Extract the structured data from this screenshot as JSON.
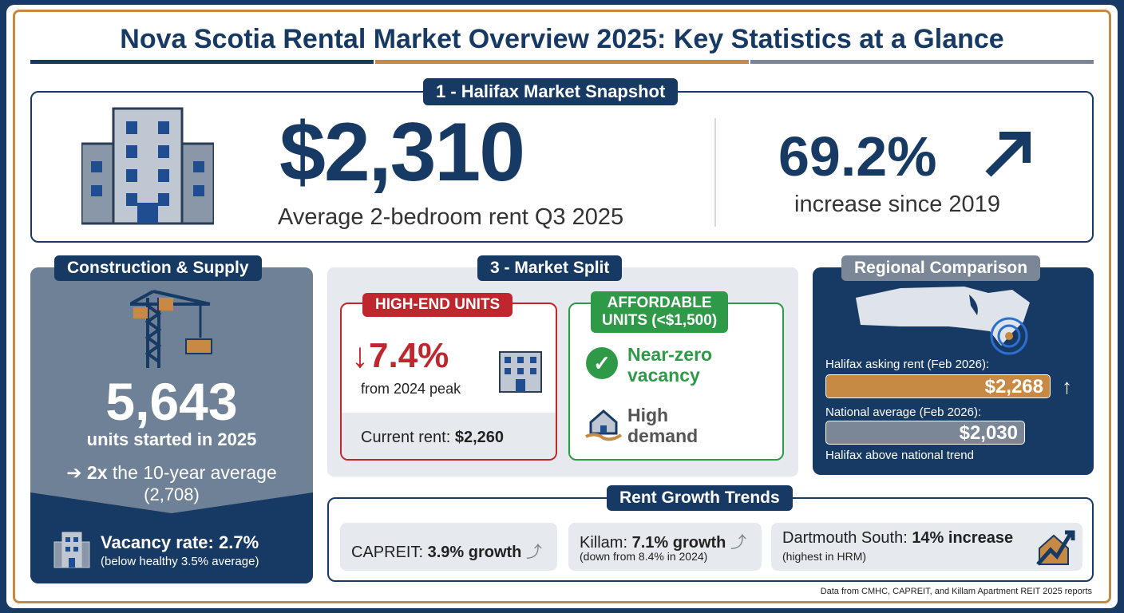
{
  "title": "Nova Scotia Rental Market Overview 2025: Key Statistics at a Glance",
  "colors": {
    "navy": "#173a64",
    "gold": "#c68a45",
    "gray": "#6f8196",
    "red": "#c0262d",
    "green": "#2e9a48"
  },
  "snapshot": {
    "label": "1 - Halifax Market Snapshot",
    "rent": "$2,310",
    "rent_caption": "Average 2-bedroom rent Q3 2025",
    "increase": "69.2%",
    "increase_caption": "increase since 2019",
    "icon": "apartment-building-icon"
  },
  "construction": {
    "label": "Construction & Supply",
    "units": "5,643",
    "units_caption": "units started in 2025",
    "comparison_bold": "2x",
    "comparison": " the 10-year average",
    "comparison_value": "(2,708)",
    "vacancy": "Vacancy rate: 2.7%",
    "vacancy_note": "(below healthy 3.5% average)"
  },
  "split": {
    "label": "3 - Market Split",
    "high_end": {
      "label": "HIGH-END UNITS",
      "change": "7.4%",
      "caption": "from 2024 peak",
      "current_label": "Current rent: ",
      "current_value": "$2,260"
    },
    "affordable": {
      "label_line1": "AFFORDABLE",
      "label_line2": "UNITS (<$1,500)",
      "item1_line1": "Near-zero",
      "item1_line2": "vacancy",
      "item2_line1": "High",
      "item2_line2": "demand"
    }
  },
  "regional": {
    "label": "Regional Comparison",
    "halifax_label": "Halifax asking rent (Feb 2026):",
    "halifax_value": "$2,268",
    "national_label": "National average (Feb 2026):",
    "national_value": "$2,030",
    "note": "Halifax above national trend"
  },
  "trends": {
    "label": "Rent Growth Trends",
    "items": [
      {
        "name": "CAPREIT: ",
        "value": "3.9% growth",
        "note": ""
      },
      {
        "name": "Killam: ",
        "value": "7.1% growth",
        "note": "(down from 8.4% in 2024)"
      },
      {
        "name": "Dartmouth South: ",
        "value": "14% increase",
        "note": "(highest in HRM)"
      }
    ]
  },
  "source": "Data from CMHC, CAPREIT, and Killam Apartment REIT 2025 reports"
}
